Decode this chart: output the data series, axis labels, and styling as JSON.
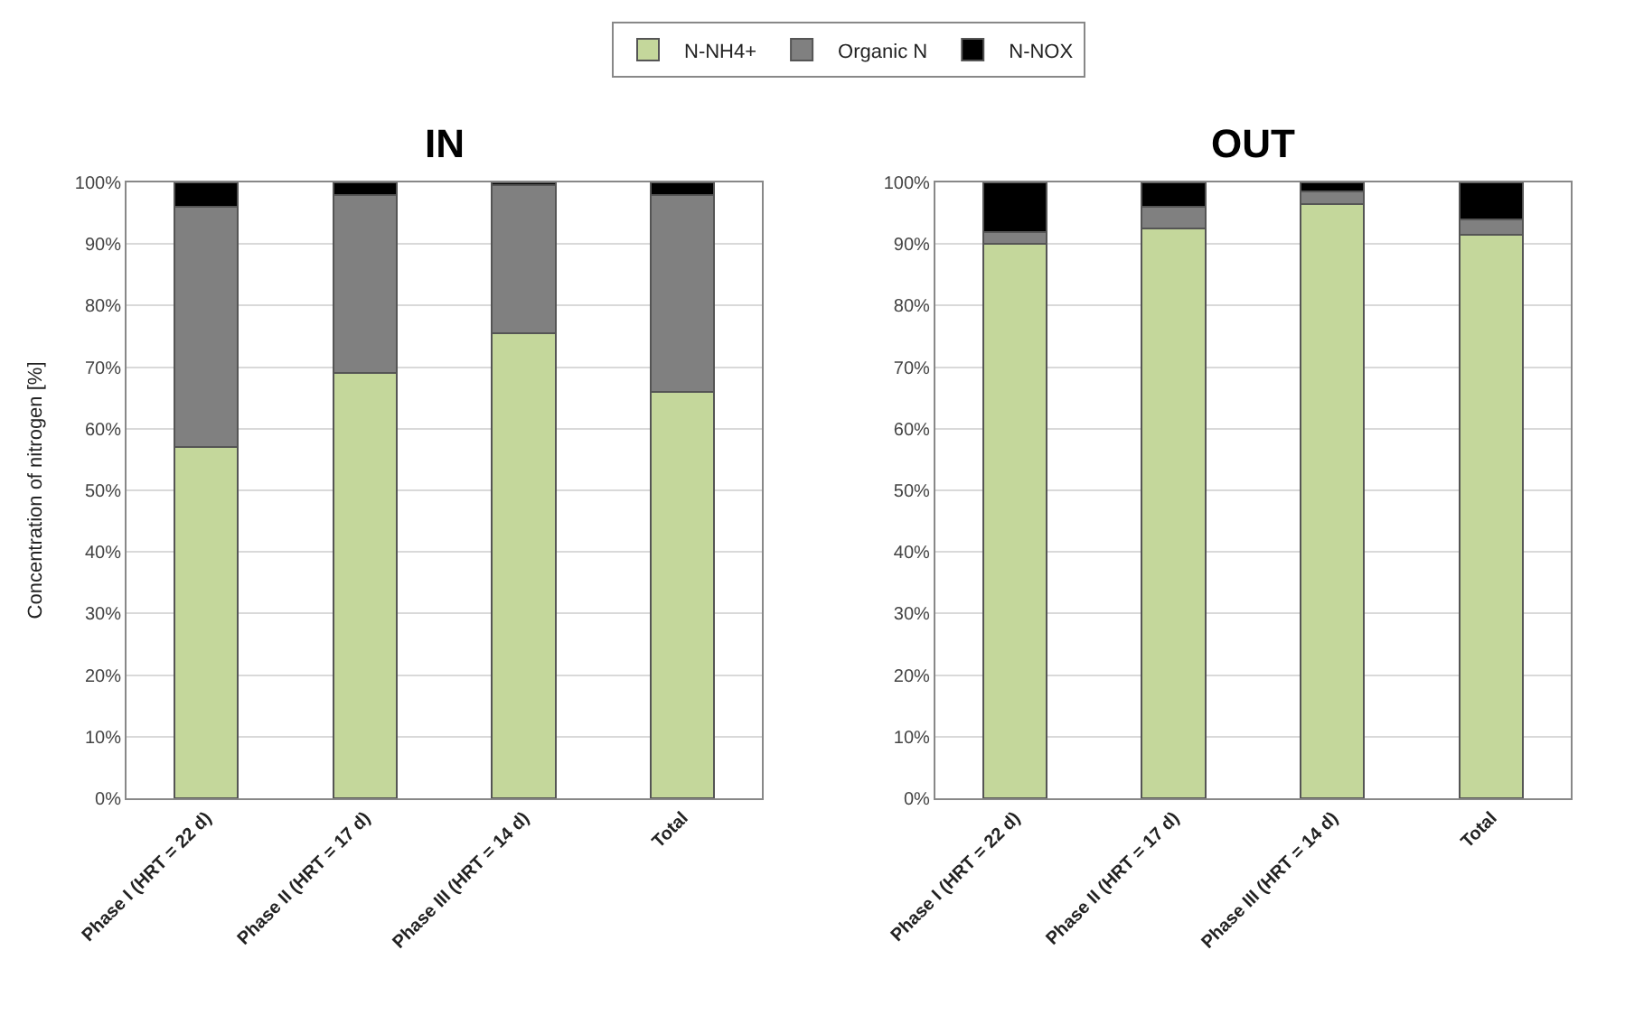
{
  "chart_data": [
    {
      "type": "bar",
      "title": "IN",
      "ylabel": "Concentration of nitrogen [%]",
      "stacked": true,
      "legend": "top",
      "grid": "y",
      "categories": [
        "Phase I (HRT = 22 d)",
        "Phase II (HRT = 17 d)",
        "Phase III (HRT = 14 d)",
        "Total"
      ],
      "series": [
        {
          "name": "N-NH4+",
          "color": "#c4d79b",
          "values": [
            57,
            69,
            75.5,
            66
          ]
        },
        {
          "name": "Organic N",
          "color": "#808080",
          "values": [
            39,
            29,
            24,
            32
          ]
        },
        {
          "name": "N-NOX",
          "color": "#000000",
          "values": [
            4,
            2,
            0.5,
            2
          ]
        }
      ],
      "ylim": [
        0,
        100
      ],
      "yticks": [
        {
          "value": 0,
          "label": "0%"
        },
        {
          "value": 10,
          "label": "10%"
        },
        {
          "value": 20,
          "label": "20%"
        },
        {
          "value": 30,
          "label": "30%"
        },
        {
          "value": 40,
          "label": "40%"
        },
        {
          "value": 50,
          "label": "50%"
        },
        {
          "value": 60,
          "label": "60%"
        },
        {
          "value": 70,
          "label": "70%"
        },
        {
          "value": 80,
          "label": "80%"
        },
        {
          "value": 90,
          "label": "90%"
        },
        {
          "value": 100,
          "label": "100%"
        }
      ]
    },
    {
      "type": "bar",
      "title": "OUT",
      "stacked": true,
      "grid": "y",
      "categories": [
        "Phase I (HRT = 22 d)",
        "Phase II (HRT = 17 d)",
        "Phase III (HRT = 14 d)",
        "Total"
      ],
      "series": [
        {
          "color": "#c4d79b",
          "values": [
            90,
            92.5,
            96.5,
            91.5
          ]
        },
        {
          "color": "#808080",
          "values": [
            2,
            3.5,
            2,
            2.5
          ]
        },
        {
          "color": "#000000",
          "values": [
            8,
            4,
            1.5,
            6
          ]
        }
      ],
      "ylim": [
        0,
        100
      ],
      "yticks": [
        {
          "value": 0,
          "label": "0%"
        },
        {
          "value": 10,
          "label": "10%"
        },
        {
          "value": 20,
          "label": "20%"
        },
        {
          "value": 30,
          "label": "30%"
        },
        {
          "value": 40,
          "label": "40%"
        },
        {
          "value": 50,
          "label": "50%"
        },
        {
          "value": 60,
          "label": "60%"
        },
        {
          "value": 70,
          "label": "70%"
        },
        {
          "value": 80,
          "label": "80%"
        },
        {
          "value": 90,
          "label": "90%"
        },
        {
          "value": 100,
          "label": "100%"
        }
      ]
    }
  ]
}
